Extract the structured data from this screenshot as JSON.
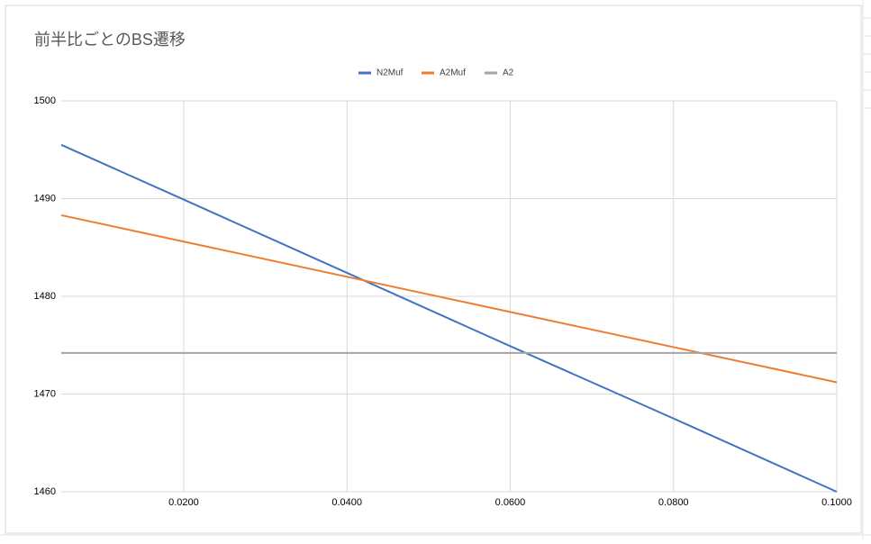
{
  "chart_data": {
    "type": "line",
    "title": "前半比ごとのBS遷移",
    "x": [
      0.005,
      0.02,
      0.04,
      0.06,
      0.08,
      0.1
    ],
    "series": [
      {
        "name": "N2Muf",
        "color": "#4472c4",
        "values": [
          1495.5,
          1489.9,
          1482.4,
          1474.9,
          1467.5,
          1460.0
        ]
      },
      {
        "name": "A2Muf",
        "color": "#ed7d31",
        "values": [
          1488.3,
          1485.6,
          1482.0,
          1478.4,
          1474.8,
          1471.2
        ]
      },
      {
        "name": "A2",
        "color": "#a5a5a5",
        "values": [
          1474.2,
          1474.2,
          1474.2,
          1474.2,
          1474.2,
          1474.2
        ]
      }
    ],
    "xlim": [
      0.005,
      0.1
    ],
    "xticks": [
      {
        "value": 0.02,
        "label": "0.0200"
      },
      {
        "value": 0.04,
        "label": "0.0400"
      },
      {
        "value": 0.06,
        "label": "0.0600"
      },
      {
        "value": 0.08,
        "label": "0.0800"
      },
      {
        "value": 0.1,
        "label": "0.1000"
      }
    ],
    "ylim": [
      1460,
      1500
    ],
    "yticks": [
      1460,
      1470,
      1480,
      1490,
      1500
    ],
    "grid": true,
    "legend": "top"
  }
}
